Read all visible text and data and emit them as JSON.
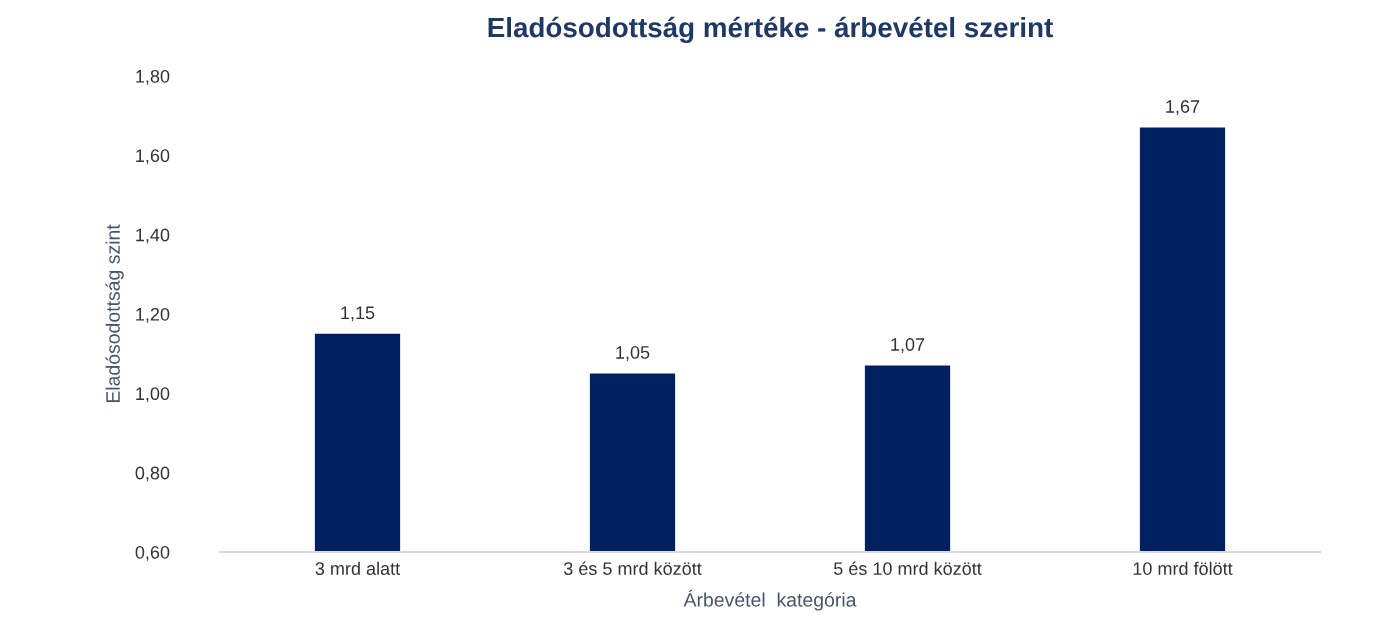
{
  "chart_data": {
    "type": "bar",
    "title": "Eladósodottság mértéke - árbevétel szerint",
    "xlabel": "Árbevétel  kategória",
    "ylabel": "Eladósodottság szint",
    "categories": [
      "3 mrd alatt",
      "3 és 5 mrd között",
      "5 és 10 mrd között",
      "10 mrd fölött"
    ],
    "values": [
      1.15,
      1.05,
      1.07,
      1.67
    ],
    "color": "#002060",
    "value_labels": [
      "1,15",
      "1,05",
      "1,07",
      "1,67"
    ],
    "ylim": [
      0.6,
      1.8
    ],
    "yticks": [
      {
        "value": 0.6,
        "label": "0,60"
      },
      {
        "value": 0.8,
        "label": "0,80"
      },
      {
        "value": 1.0,
        "label": "1,00"
      },
      {
        "value": 1.2,
        "label": "1,20"
      },
      {
        "value": 1.4,
        "label": "1,40"
      },
      {
        "value": 1.6,
        "label": "1,60"
      },
      {
        "value": 1.8,
        "label": "1,80"
      }
    ],
    "grid": false,
    "legend": false
  }
}
